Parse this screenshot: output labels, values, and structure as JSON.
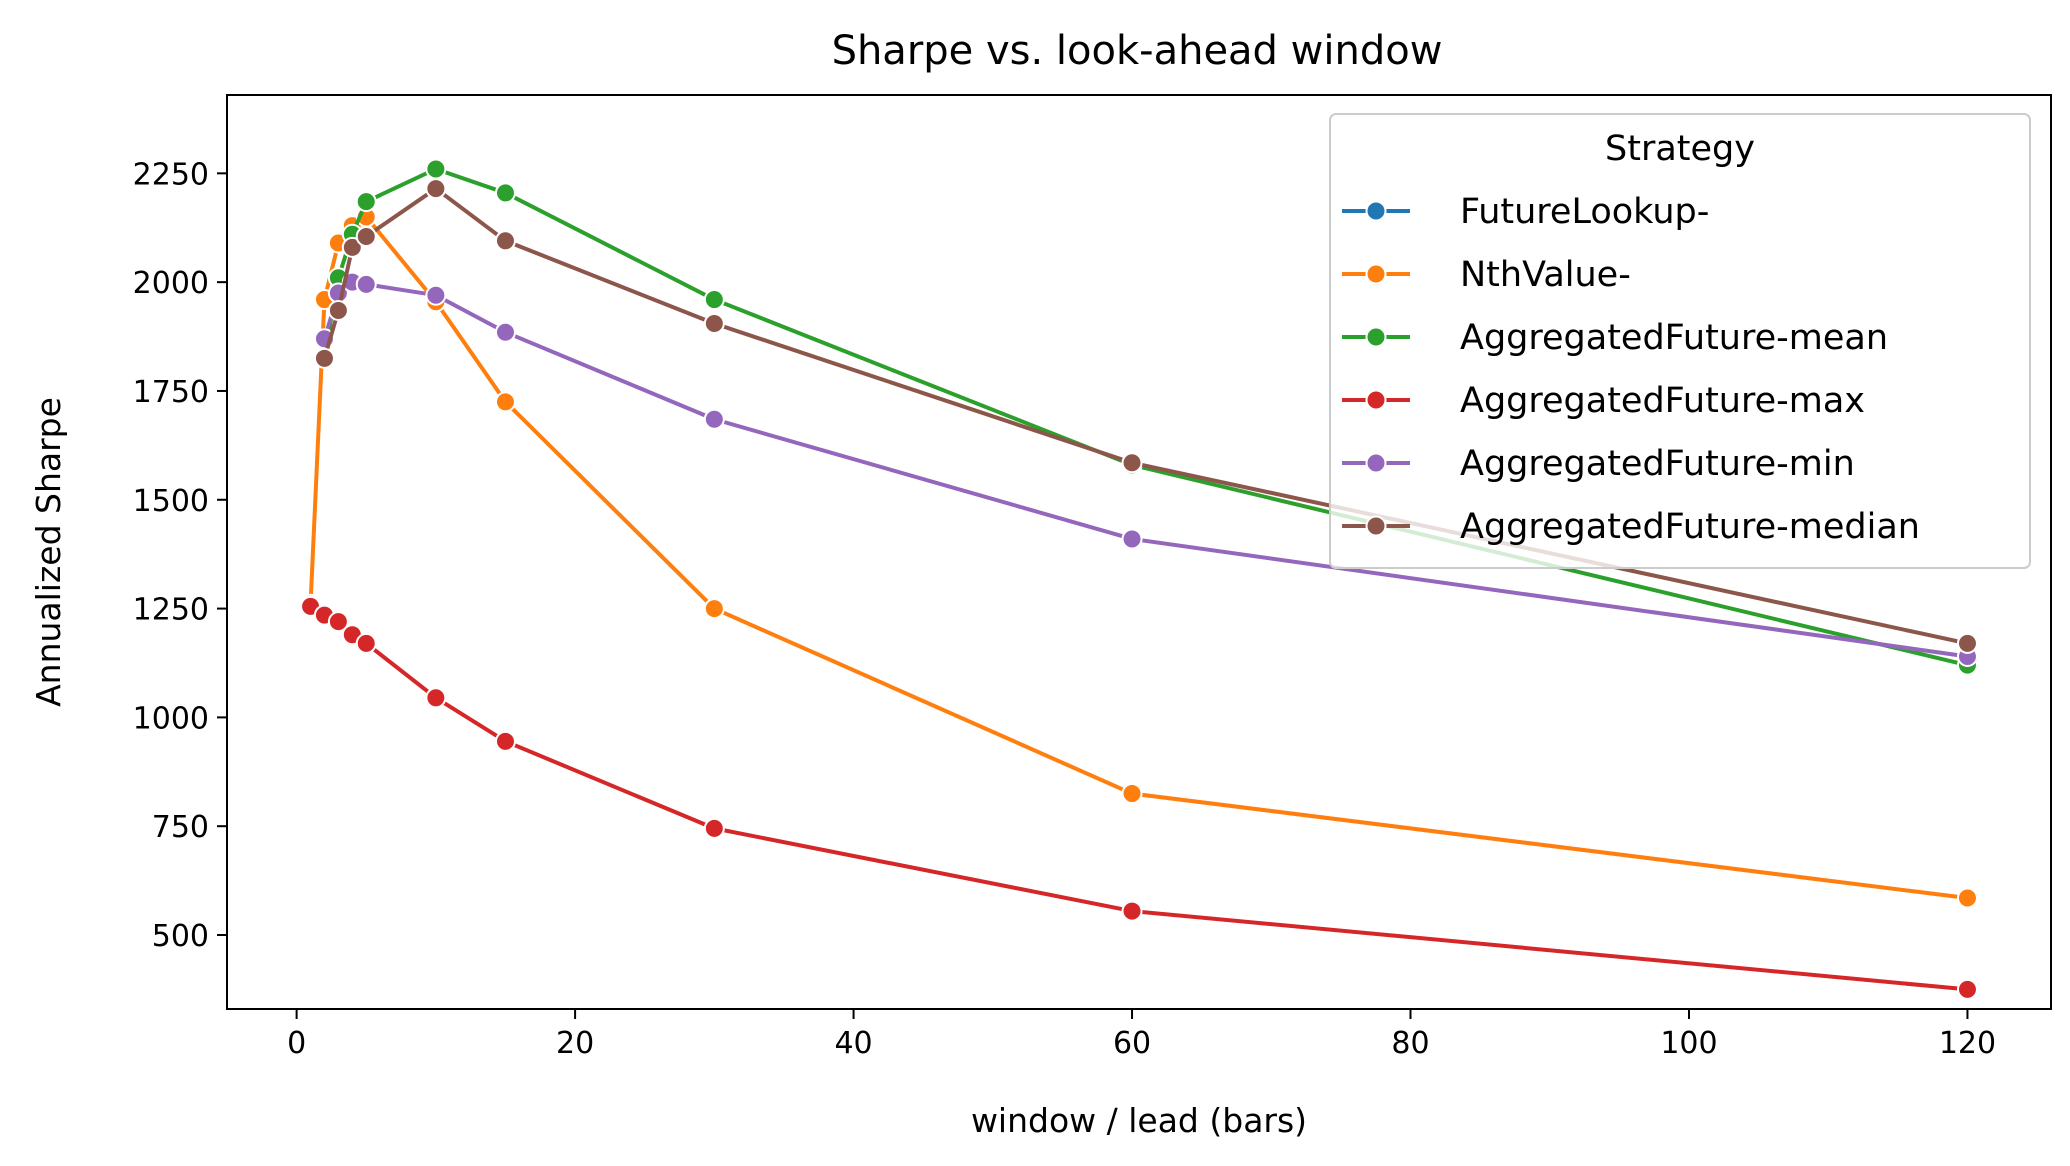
{
  "chart_data": {
    "type": "line",
    "title": "Sharpe vs. look-ahead window",
    "xlabel": "window / lead (bars)",
    "ylabel": "Annualized Sharpe",
    "xlim": [
      -5,
      126
    ],
    "ylim": [
      330,
      2430
    ],
    "xticks": [
      0,
      20,
      40,
      60,
      80,
      100,
      120
    ],
    "yticks": [
      500,
      750,
      1000,
      1250,
      1500,
      1750,
      2000,
      2250
    ],
    "grid": false,
    "legend": {
      "title": "Strategy",
      "placement": "top-right"
    },
    "series": [
      {
        "name": "FutureLookup-",
        "color": "#1f77b4",
        "x": [],
        "y": []
      },
      {
        "name": "NthValue-",
        "color": "#ff7f0e",
        "x": [
          1,
          2,
          3,
          4,
          5,
          10,
          15,
          30,
          60,
          120
        ],
        "y": [
          1260,
          1960,
          2090,
          2130,
          2150,
          1955,
          1725,
          1250,
          825,
          585
        ]
      },
      {
        "name": "AggregatedFuture-mean",
        "color": "#2ca02c",
        "x": [
          2,
          3,
          4,
          5,
          10,
          15,
          30,
          60,
          120
        ],
        "y": [
          1830,
          2010,
          2110,
          2185,
          2260,
          2205,
          1960,
          1580,
          1120
        ]
      },
      {
        "name": "AggregatedFuture-max",
        "color": "#d62728",
        "x": [
          1,
          2,
          3,
          4,
          5,
          10,
          15,
          30,
          60,
          120
        ],
        "y": [
          1255,
          1235,
          1220,
          1190,
          1170,
          1045,
          945,
          745,
          555,
          375
        ]
      },
      {
        "name": "AggregatedFuture-min",
        "color": "#9467bd",
        "x": [
          2,
          3,
          4,
          5,
          10,
          15,
          30,
          60,
          120
        ],
        "y": [
          1870,
          1975,
          2000,
          1995,
          1970,
          1885,
          1685,
          1410,
          1140
        ]
      },
      {
        "name": "AggregatedFuture-median",
        "color": "#8c564b",
        "x": [
          2,
          3,
          4,
          5,
          10,
          15,
          30,
          60,
          120
        ],
        "y": [
          1825,
          1935,
          2080,
          2105,
          2215,
          2095,
          1905,
          1585,
          1170
        ]
      }
    ]
  }
}
